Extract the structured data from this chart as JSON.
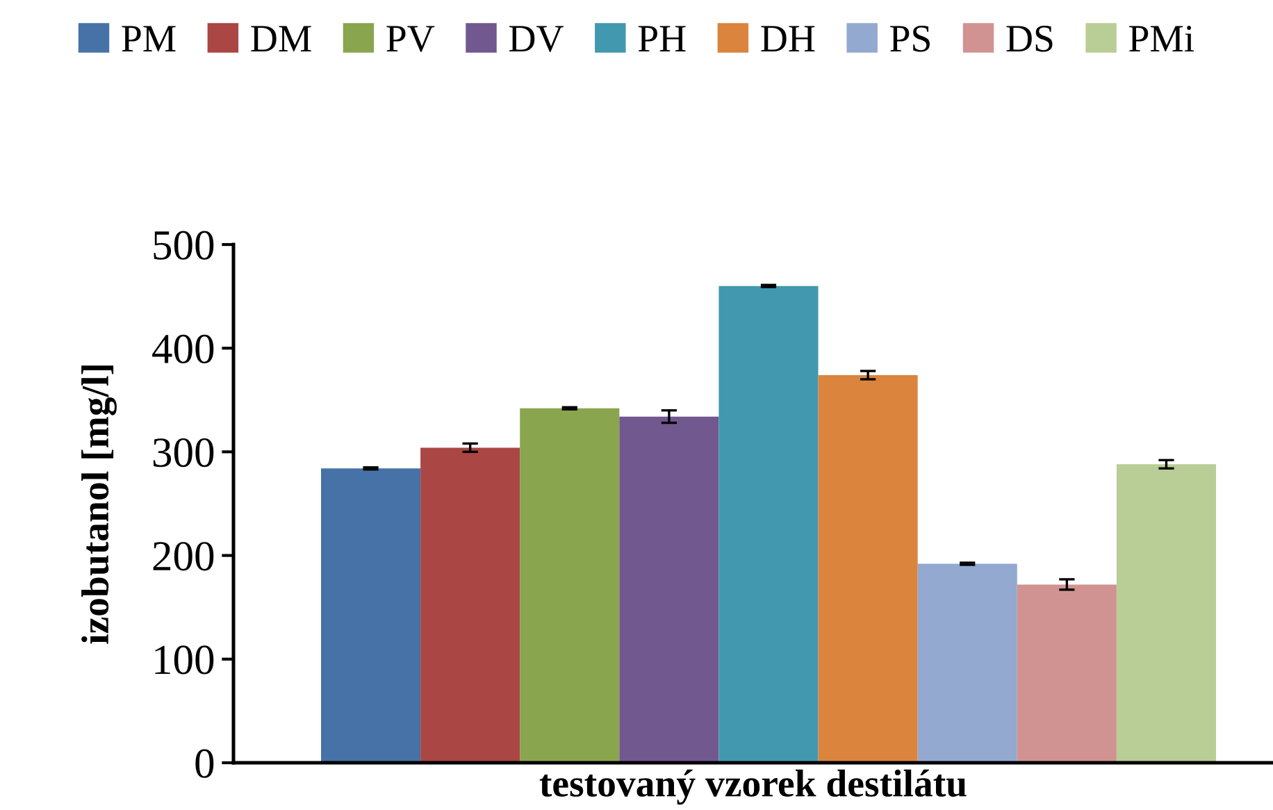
{
  "chart_data": {
    "type": "bar",
    "categories": [
      null
    ],
    "xlabel": "testovaný vzorek destilátu",
    "ylabel": "izobutanol [mg/l]",
    "ylim": [
      0,
      500
    ],
    "yticks": [
      0,
      100,
      200,
      300,
      400,
      500
    ],
    "grid": false,
    "legend": "top",
    "series": [
      {
        "name": "PM",
        "color": "#4672a7",
        "values": [
          284
        ],
        "errors": [
          1
        ]
      },
      {
        "name": "DM",
        "color": "#aa4644",
        "values": [
          304
        ],
        "errors": [
          4
        ]
      },
      {
        "name": "PV",
        "color": "#89a54e",
        "values": [
          342
        ],
        "errors": [
          1
        ]
      },
      {
        "name": "DV",
        "color": "#71588f",
        "values": [
          334
        ],
        "errors": [
          6
        ]
      },
      {
        "name": "PH",
        "color": "#4298af",
        "values": [
          460
        ],
        "errors": [
          1
        ]
      },
      {
        "name": "DH",
        "color": "#db843d",
        "values": [
          374
        ],
        "errors": [
          4
        ]
      },
      {
        "name": "PS",
        "color": "#94a9cf",
        "values": [
          192
        ],
        "errors": [
          1
        ]
      },
      {
        "name": "DS",
        "color": "#d19392",
        "values": [
          172
        ],
        "errors": [
          5
        ]
      },
      {
        "name": "PMi",
        "color": "#b9cd96",
        "values": [
          288
        ],
        "errors": [
          4
        ]
      }
    ]
  }
}
